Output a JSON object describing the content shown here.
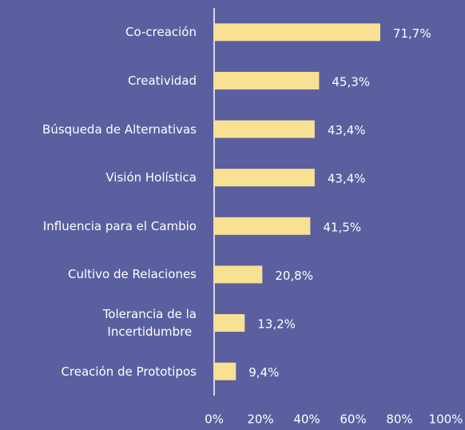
{
  "chart_data": {
    "type": "hbar",
    "categories": [
      "Co-creación",
      "Creatividad",
      "Búsqueda de Alternativas",
      "Visión Holística",
      "Influencia para el Cambio",
      "Cultivo de Relaciones",
      "Tolerancia de la\nIncertidumbre",
      "Creación de Prototipos"
    ],
    "values": [
      71.7,
      45.3,
      43.4,
      43.4,
      41.5,
      20.8,
      13.2,
      9.4
    ],
    "value_labels": [
      "71,7%",
      "45,3%",
      "43,4%",
      "43,4%",
      "41,5%",
      "20,8%",
      "13,2%",
      "9,4%"
    ],
    "color": "#f8e192",
    "xlim": [
      0,
      100
    ],
    "xticks": [
      {
        "value": 0,
        "label": "0%"
      },
      {
        "value": 20,
        "label": "20%"
      },
      {
        "value": 40,
        "label": "40%"
      },
      {
        "value": 60,
        "label": "60%"
      },
      {
        "value": 80,
        "label": "80%"
      },
      {
        "value": 100,
        "label": "100%"
      }
    ],
    "grid": false
  }
}
